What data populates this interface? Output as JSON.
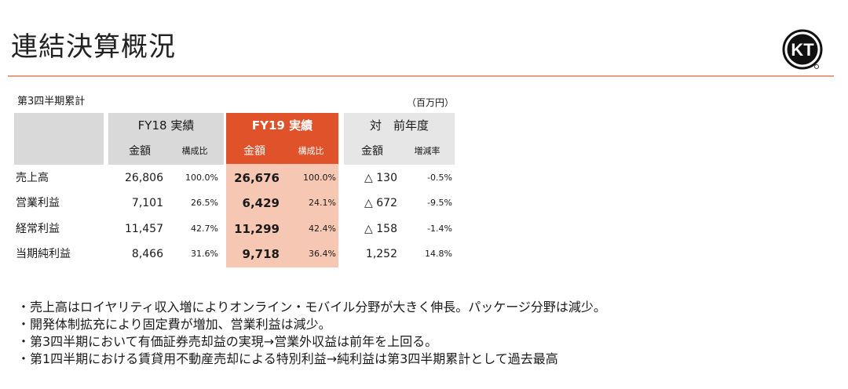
{
  "page": {
    "title": "連結決算概況",
    "period": "第3四半期累計",
    "unit": "（百万円）"
  },
  "logo": {
    "text": "KT"
  },
  "table": {
    "groups": [
      {
        "label": "FY18 実績",
        "sub": [
          "金額",
          "構成比"
        ]
      },
      {
        "label": "FY19 実績",
        "sub": [
          "金額",
          "構成比"
        ]
      },
      {
        "label": "対　前年度",
        "sub": [
          "金額",
          "増減率"
        ]
      }
    ],
    "rows": [
      {
        "label": "売上高",
        "fy18_amount": "26,806",
        "fy18_ratio": "100.0%",
        "fy19_amount": "26,676",
        "fy19_ratio": "100.0%",
        "diff_amount": "△ 130",
        "diff_rate": "-0.5%"
      },
      {
        "label": "営業利益",
        "fy18_amount": "7,101",
        "fy18_ratio": "26.5%",
        "fy19_amount": "6,429",
        "fy19_ratio": "24.1%",
        "diff_amount": "△ 672",
        "diff_rate": "-9.5%"
      },
      {
        "label": "経常利益",
        "fy18_amount": "11,457",
        "fy18_ratio": "42.7%",
        "fy19_amount": "11,299",
        "fy19_ratio": "42.4%",
        "diff_amount": "△ 158",
        "diff_rate": "-1.4%"
      },
      {
        "label": "当期純利益",
        "fy18_amount": "8,466",
        "fy18_ratio": "31.6%",
        "fy19_amount": "9,718",
        "fy19_ratio": "36.4%",
        "diff_amount": "1,252",
        "diff_rate": "14.8%"
      }
    ]
  },
  "bullets": [
    "・売上高はロイヤリティ収入増によりオンライン・モバイル分野が大きく伸長。パッケージ分野は減少。",
    "・開発体制拡充により固定費が増加、営業利益は減少。",
    "・第3四半期において有価証券売却益の実現→営業外収益は前年を上回る。",
    "・第1四半期における賃貸用不動産売却による特別利益→純利益は第3四半期累計として過去最高"
  ],
  "colors": {
    "accent": "#e0522a",
    "accent_light": "#f6c7b2",
    "rule": "#e0a080",
    "header_gray": "#d9d9d9"
  }
}
